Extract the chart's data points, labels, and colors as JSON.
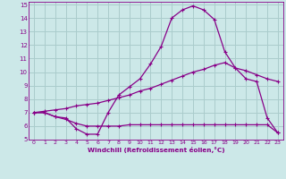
{
  "xlabel": "Windchill (Refroidissement éolien,°C)",
  "bg_color": "#cce8e8",
  "grid_color": "#aacccc",
  "line_color": "#880088",
  "xlim": [
    -0.5,
    23.5
  ],
  "ylim": [
    5,
    15.2
  ],
  "xticks": [
    0,
    1,
    2,
    3,
    4,
    5,
    6,
    7,
    8,
    9,
    10,
    11,
    12,
    13,
    14,
    15,
    16,
    17,
    18,
    19,
    20,
    21,
    22,
    23
  ],
  "yticks": [
    5,
    6,
    7,
    8,
    9,
    10,
    11,
    12,
    13,
    14,
    15
  ],
  "curve1_x": [
    0,
    1,
    2,
    3,
    4,
    5,
    6,
    7,
    8,
    9,
    10,
    11,
    12,
    13,
    14,
    15,
    16,
    17,
    18,
    19,
    20,
    21,
    22,
    23
  ],
  "curve1_y": [
    7.0,
    7.0,
    6.7,
    6.6,
    5.8,
    5.4,
    5.4,
    7.0,
    8.3,
    8.9,
    9.5,
    10.6,
    11.9,
    14.0,
    14.6,
    14.9,
    14.6,
    13.9,
    11.5,
    10.3,
    9.5,
    9.3,
    6.6,
    5.5
  ],
  "curve2_x": [
    0,
    1,
    2,
    3,
    4,
    5,
    6,
    7,
    8,
    9,
    10,
    11,
    12,
    13,
    14,
    15,
    16,
    17,
    18,
    19,
    20,
    21,
    22,
    23
  ],
  "curve2_y": [
    7.0,
    7.0,
    6.7,
    6.5,
    6.2,
    6.0,
    6.0,
    6.0,
    6.0,
    6.1,
    6.1,
    6.1,
    6.1,
    6.1,
    6.1,
    6.1,
    6.1,
    6.1,
    6.1,
    6.1,
    6.1,
    6.1,
    6.1,
    5.5
  ],
  "curve3_x": [
    0,
    1,
    2,
    3,
    4,
    5,
    6,
    7,
    8,
    9,
    10,
    11,
    12,
    13,
    14,
    15,
    16,
    17,
    18,
    19,
    20,
    21,
    22,
    23
  ],
  "curve3_y": [
    7.0,
    7.1,
    7.2,
    7.3,
    7.5,
    7.6,
    7.7,
    7.9,
    8.1,
    8.3,
    8.6,
    8.8,
    9.1,
    9.4,
    9.7,
    10.0,
    10.2,
    10.5,
    10.7,
    10.3,
    10.1,
    9.8,
    9.5,
    9.3
  ]
}
